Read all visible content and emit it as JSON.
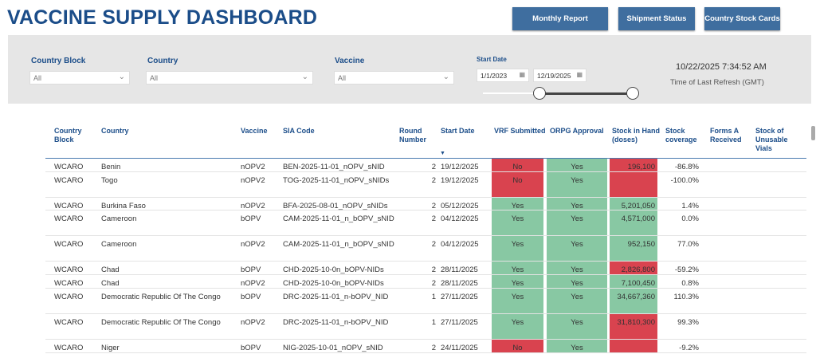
{
  "header": {
    "title": "VACCINE SUPPLY DASHBOARD",
    "buttons": [
      "Monthly Report",
      "Shipment Status",
      "Country Stock Cards"
    ]
  },
  "filters": {
    "country_block": {
      "label": "Country Block",
      "value": "All"
    },
    "country": {
      "label": "Country",
      "value": "All"
    },
    "vaccine": {
      "label": "Vaccine",
      "value": "All"
    },
    "start_date": {
      "label": "Start Date",
      "from": "1/1/2023",
      "to": "12/19/2025",
      "range_fraction": [
        0.38,
        1.0
      ]
    },
    "refresh_time": "10/22/2025 7:34:52 AM",
    "refresh_label": "Time of Last Refresh (GMT)"
  },
  "colors": {
    "red": "#d9434f",
    "green": "#88c8a3",
    "brand": "#1b4d89"
  },
  "table": {
    "columns": [
      "Country Block",
      "Country",
      "Vaccine",
      "SIA Code",
      "Round Number",
      "Start Date",
      "VRF Submitted",
      "ORPG Approval",
      "Stock in Hand (doses)",
      "Stock coverage",
      "Forms A Received",
      "Stock of Unusable Vials"
    ],
    "sort_column": "Start Date",
    "sort_direction": "descending",
    "rows": [
      {
        "block": "WCARO",
        "country": "Benin",
        "vaccine": "nOPV2",
        "sia": "BEN-2025-11-01_nOPV_sNID",
        "round": "2",
        "date": "19/12/2025",
        "vrf": "No",
        "orpg": "Yes",
        "stock": "196,100",
        "stock_status": "red",
        "coverage": "-86.8%"
      },
      {
        "block": "WCARO",
        "country": "Togo",
        "vaccine": "nOPV2",
        "sia": "TOG-2025-11-01_nOPV_sNIDs",
        "round": "2",
        "date": "19/12/2025",
        "vrf": "No",
        "orpg": "Yes",
        "stock": "",
        "stock_status": "red",
        "coverage": "-100.0%"
      },
      {
        "block": "WCARO",
        "country": "Burkina Faso",
        "vaccine": "nOPV2",
        "sia": "BFA-2025-08-01_nOPV_sNIDs",
        "round": "2",
        "date": "05/12/2025",
        "vrf": "Yes",
        "orpg": "Yes",
        "stock": "5,201,050",
        "stock_status": "green",
        "coverage": "1.4%"
      },
      {
        "block": "WCARO",
        "country": "Cameroon",
        "vaccine": "bOPV",
        "sia": "CAM-2025-11-01_n_bOPV_sNID",
        "round": "2",
        "date": "04/12/2025",
        "vrf": "Yes",
        "orpg": "Yes",
        "stock": "4,571,000",
        "stock_status": "green",
        "coverage": "0.0%"
      },
      {
        "block": "WCARO",
        "country": "Cameroon",
        "vaccine": "nOPV2",
        "sia": "CAM-2025-11-01_n_bOPV_sNID",
        "round": "2",
        "date": "04/12/2025",
        "vrf": "Yes",
        "orpg": "Yes",
        "stock": "952,150",
        "stock_status": "green",
        "coverage": "77.0%"
      },
      {
        "block": "WCARO",
        "country": "Chad",
        "vaccine": "bOPV",
        "sia": "CHD-2025-10-0n_bOPV-NIDs",
        "round": "2",
        "date": "28/11/2025",
        "vrf": "Yes",
        "orpg": "Yes",
        "stock": "2,826,800",
        "stock_status": "red",
        "coverage": "-59.2%"
      },
      {
        "block": "WCARO",
        "country": "Chad",
        "vaccine": "nOPV2",
        "sia": "CHD-2025-10-0n_bOPV-NIDs",
        "round": "2",
        "date": "28/11/2025",
        "vrf": "Yes",
        "orpg": "Yes",
        "stock": "7,100,450",
        "stock_status": "green",
        "coverage": "0.8%"
      },
      {
        "block": "WCARO",
        "country": "Democratic Republic Of The Congo",
        "vaccine": "bOPV",
        "sia": "DRC-2025-11-01_n-bOPV_NID",
        "round": "1",
        "date": "27/11/2025",
        "vrf": "Yes",
        "orpg": "Yes",
        "stock": "34,667,360",
        "stock_status": "green",
        "coverage": "110.3%"
      },
      {
        "block": "WCARO",
        "country": "Democratic Republic Of The Congo",
        "vaccine": "nOPV2",
        "sia": "DRC-2025-11-01_n-bOPV_NID",
        "round": "1",
        "date": "27/11/2025",
        "vrf": "Yes",
        "orpg": "Yes",
        "stock": "31,810,300",
        "stock_status": "red",
        "coverage": "99.3%"
      },
      {
        "block": "WCARO",
        "country": "Niger",
        "vaccine": "bOPV",
        "sia": "NIG-2025-10-01_nOPV_sNID",
        "round": "2",
        "date": "24/11/2025",
        "vrf": "No",
        "orpg": "Yes",
        "stock": "",
        "stock_status": "red",
        "coverage": "-9.2%"
      }
    ]
  }
}
